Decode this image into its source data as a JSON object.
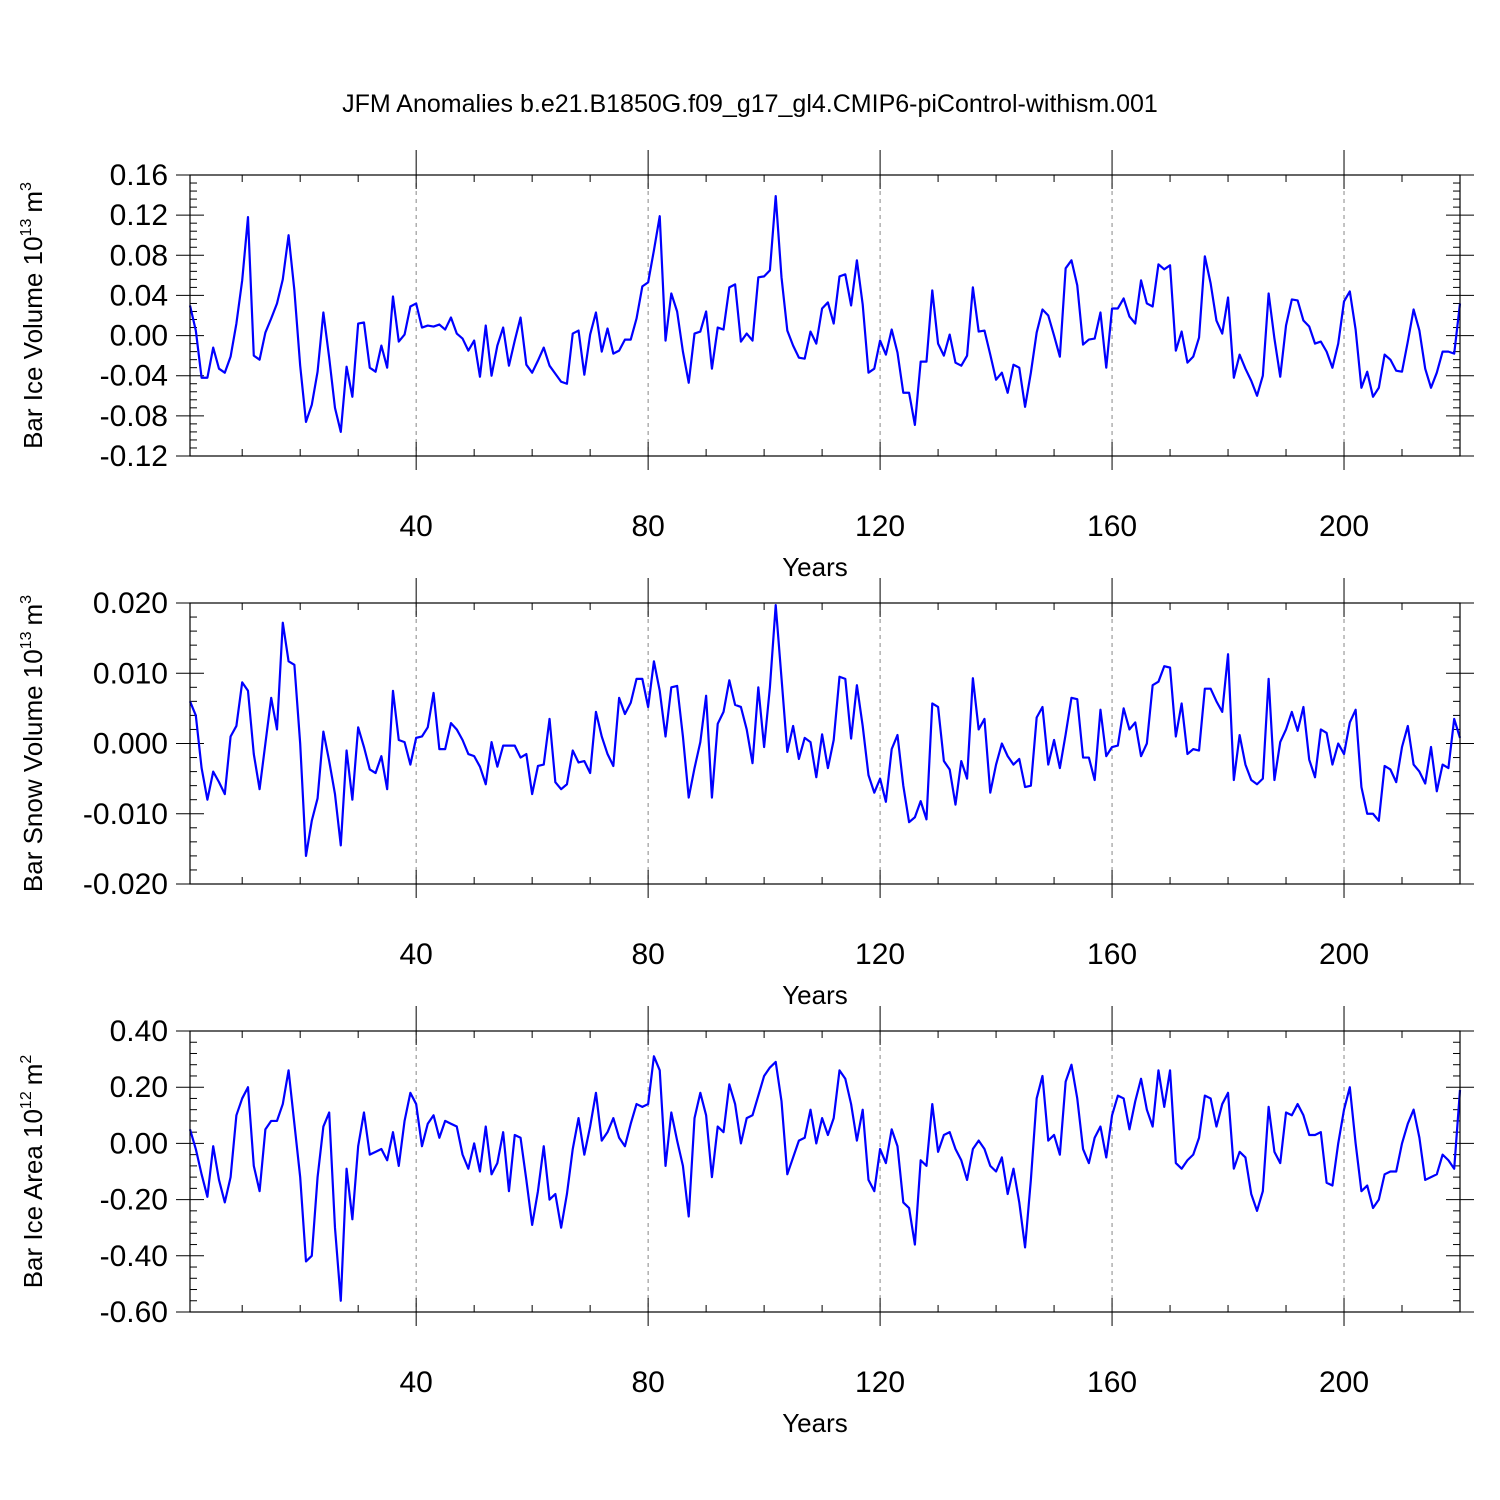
{
  "title": "JFM Anomalies b.e21.B1850G.f09_g17_gl4.CMIP6-piControl-withism.001",
  "line_color": "#0000ff",
  "chart_data": [
    {
      "type": "line",
      "name": "Bar Ice Volume",
      "ylabel_main": "Bar Ice Volume 10",
      "ylabel_exp": "13",
      "ylabel_unit": "m",
      "ylabel_unit_exp": "3",
      "xlabel": "Years",
      "xlim": [
        1,
        220
      ],
      "xticks": [
        40,
        80,
        120,
        160,
        200
      ],
      "xtick_labels": [
        "40",
        "80",
        "120",
        "160",
        "200"
      ],
      "ylim": [
        -0.12,
        0.16
      ],
      "yticks": [
        -0.12,
        -0.08,
        -0.04,
        0.0,
        0.04,
        0.08,
        0.12,
        0.16
      ],
      "ytick_labels": [
        "-0.12",
        "-0.08",
        "-0.04",
        "0.00",
        "0.04",
        "0.08",
        "0.12",
        "0.16"
      ],
      "grid": "dashed vertical at x ticks",
      "values": [
        0.03,
        0.005,
        -0.042,
        -0.042,
        -0.012,
        -0.033,
        -0.037,
        -0.021,
        0.012,
        0.055,
        0.118,
        -0.02,
        -0.024,
        0.003,
        0.017,
        0.032,
        0.056,
        0.1,
        0.045,
        -0.03,
        -0.086,
        -0.069,
        -0.036,
        0.023,
        -0.022,
        -0.072,
        -0.096,
        -0.031,
        -0.061,
        0.012,
        0.013,
        -0.032,
        -0.036,
        -0.01,
        -0.032,
        0.039,
        -0.006,
        0.001,
        0.029,
        0.032,
        0.008,
        0.01,
        0.009,
        0.011,
        0.006,
        0.018,
        0.002,
        -0.003,
        -0.015,
        -0.005,
        -0.041,
        0.01,
        -0.04,
        -0.01,
        0.008,
        -0.03,
        -0.005,
        0.018,
        -0.029,
        -0.037,
        -0.025,
        -0.012,
        -0.03,
        -0.038,
        -0.046,
        -0.048,
        0.002,
        0.005,
        -0.039,
        0.001,
        0.023,
        -0.016,
        0.007,
        -0.018,
        -0.015,
        -0.004,
        -0.004,
        0.017,
        0.049,
        0.053,
        0.085,
        0.119,
        -0.005,
        0.042,
        0.024,
        -0.016,
        -0.047,
        0.002,
        0.004,
        0.024,
        -0.033,
        0.008,
        0.006,
        0.048,
        0.051,
        -0.006,
        0.002,
        -0.005,
        0.058,
        0.059,
        0.065,
        0.139,
        0.058,
        0.005,
        -0.01,
        -0.022,
        -0.023,
        0.004,
        -0.008,
        0.027,
        0.033,
        0.012,
        0.059,
        0.061,
        0.03,
        0.075,
        0.031,
        -0.037,
        -0.033,
        -0.005,
        -0.019,
        0.006,
        -0.017,
        -0.057,
        -0.057,
        -0.089,
        -0.026,
        -0.026,
        0.045,
        -0.008,
        -0.02,
        0.001,
        -0.027,
        -0.03,
        -0.02,
        0.048,
        0.004,
        0.005,
        -0.019,
        -0.044,
        -0.037,
        -0.057,
        -0.029,
        -0.032,
        -0.071,
        -0.037,
        0.003,
        0.026,
        0.02,
        0.0,
        -0.021,
        0.067,
        0.075,
        0.05,
        -0.009,
        -0.004,
        -0.003,
        0.023,
        -0.032,
        0.027,
        0.027,
        0.037,
        0.019,
        0.012,
        0.055,
        0.032,
        0.029,
        0.071,
        0.066,
        0.07,
        -0.015,
        0.004,
        -0.027,
        -0.021,
        -0.002,
        0.079,
        0.052,
        0.015,
        0.002,
        0.038,
        -0.042,
        -0.019,
        -0.033,
        -0.045,
        -0.06,
        -0.04,
        0.042,
        -0.003,
        -0.041,
        0.01,
        0.036,
        0.035,
        0.015,
        0.009,
        -0.008,
        -0.006,
        -0.016,
        -0.032,
        -0.008,
        0.034,
        0.044,
        0.006,
        -0.052,
        -0.036,
        -0.061,
        -0.052,
        -0.019,
        -0.024,
        -0.035,
        -0.036,
        -0.006,
        0.026,
        0.005,
        -0.033,
        -0.052,
        -0.037,
        -0.016,
        -0.016,
        -0.018,
        0.032
      ]
    },
    {
      "type": "line",
      "name": "Bar Snow Volume",
      "ylabel_main": "Bar Snow Volume 10",
      "ylabel_exp": "13",
      "ylabel_unit": "m",
      "ylabel_unit_exp": "3",
      "xlabel": "Years",
      "xlim": [
        1,
        220
      ],
      "xticks": [
        40,
        80,
        120,
        160,
        200
      ],
      "xtick_labels": [
        "40",
        "80",
        "120",
        "160",
        "200"
      ],
      "ylim": [
        -0.02,
        0.02
      ],
      "yticks": [
        -0.02,
        -0.01,
        0.0,
        0.01,
        0.02
      ],
      "ytick_labels": [
        "-0.020",
        "-0.010",
        "0.000",
        "0.010",
        "0.020"
      ],
      "grid": "dashed vertical at x ticks",
      "values": [
        0.006,
        0.004,
        -0.0035,
        -0.008,
        -0.004,
        -0.0055,
        -0.0072,
        0.001,
        0.0025,
        0.0087,
        0.0075,
        -0.0015,
        -0.0065,
        0.0,
        0.0065,
        0.002,
        0.0172,
        0.0117,
        0.0112,
        0.0,
        -0.016,
        -0.011,
        -0.0078,
        0.0017,
        -0.0025,
        -0.0072,
        -0.0145,
        -0.001,
        -0.008,
        0.0023,
        -0.0005,
        -0.0037,
        -0.0042,
        -0.0018,
        -0.0065,
        0.0075,
        0.0005,
        0.0002,
        -0.003,
        0.0008,
        0.001,
        0.0023,
        0.0072,
        -0.0008,
        -0.0008,
        0.0029,
        0.002,
        0.0005,
        -0.0015,
        -0.0018,
        -0.0033,
        -0.0058,
        0.0002,
        -0.0033,
        -0.0003,
        -0.0003,
        -0.0003,
        -0.002,
        -0.0015,
        -0.0072,
        -0.0032,
        -0.003,
        0.0035,
        -0.0055,
        -0.0065,
        -0.0058,
        -0.001,
        -0.0027,
        -0.0025,
        -0.0042,
        0.0045,
        0.001,
        -0.0015,
        -0.0032,
        0.0065,
        0.0042,
        0.0058,
        0.0092,
        0.0092,
        0.0052,
        0.0117,
        0.0075,
        0.001,
        0.008,
        0.0082,
        0.001,
        -0.0077,
        -0.0035,
        0.0002,
        0.0068,
        -0.0077,
        0.0028,
        0.0045,
        0.009,
        0.0055,
        0.0052,
        0.002,
        -0.0028,
        0.008,
        -0.0005,
        0.008,
        0.0197,
        0.0093,
        -0.0012,
        0.0025,
        -0.0022,
        0.0008,
        0.0002,
        -0.0048,
        0.0013,
        -0.0035,
        0.0005,
        0.0095,
        0.0092,
        0.0007,
        0.0083,
        0.0025,
        -0.0045,
        -0.007,
        -0.005,
        -0.0083,
        -0.0008,
        0.0012,
        -0.006,
        -0.0112,
        -0.0105,
        -0.0082,
        -0.0108,
        0.0057,
        0.0052,
        -0.0025,
        -0.0037,
        -0.0087,
        -0.0025,
        -0.005,
        0.0093,
        0.002,
        0.0035,
        -0.007,
        -0.003,
        0.0,
        -0.0018,
        -0.003,
        -0.0022,
        -0.0062,
        -0.006,
        0.0037,
        0.0052,
        -0.003,
        0.0005,
        -0.0035,
        0.0013,
        0.0065,
        0.0063,
        -0.002,
        -0.002,
        -0.0052,
        0.0048,
        -0.0018,
        -0.0005,
        -0.0003,
        0.005,
        0.002,
        0.003,
        -0.0018,
        0.0,
        0.0083,
        0.0088,
        0.011,
        0.0108,
        0.001,
        0.0057,
        -0.0015,
        -0.0008,
        -0.001,
        0.0078,
        0.0078,
        0.006,
        0.0045,
        0.0127,
        -0.0052,
        0.0012,
        -0.003,
        -0.0052,
        -0.0058,
        -0.005,
        0.0092,
        -0.0052,
        0.0002,
        0.002,
        0.0045,
        0.0018,
        0.0052,
        -0.0023,
        -0.0048,
        0.002,
        0.0015,
        -0.003,
        0.0,
        -0.0015,
        0.003,
        0.0048,
        -0.0062,
        -0.01,
        -0.01,
        -0.011,
        -0.0032,
        -0.0037,
        -0.0055,
        -0.0005,
        0.0025,
        -0.003,
        -0.004,
        -0.0057,
        -0.0005,
        -0.0068,
        -0.003,
        -0.0035,
        0.0035,
        0.0008
      ]
    },
    {
      "type": "line",
      "name": "Bar Ice Area",
      "ylabel_main": "Bar Ice Area 10",
      "ylabel_exp": "12",
      "ylabel_unit": "m",
      "ylabel_unit_exp": "2",
      "xlabel": "Years",
      "xlim": [
        1,
        220
      ],
      "xticks": [
        40,
        80,
        120,
        160,
        200
      ],
      "xtick_labels": [
        "40",
        "80",
        "120",
        "160",
        "200"
      ],
      "ylim": [
        -0.6,
        0.4
      ],
      "yticks": [
        -0.6,
        -0.4,
        -0.2,
        0.0,
        0.2,
        0.4
      ],
      "ytick_labels": [
        "-0.60",
        "-0.40",
        "-0.20",
        "0.00",
        "0.20",
        "0.40"
      ],
      "grid": "dashed vertical at x ticks",
      "values": [
        0.05,
        -0.02,
        -0.11,
        -0.19,
        -0.01,
        -0.13,
        -0.21,
        -0.12,
        0.1,
        0.16,
        0.2,
        -0.08,
        -0.17,
        0.05,
        0.08,
        0.08,
        0.14,
        0.26,
        0.07,
        -0.12,
        -0.42,
        -0.4,
        -0.12,
        0.06,
        0.11,
        -0.3,
        -0.56,
        -0.09,
        -0.27,
        -0.01,
        0.11,
        -0.04,
        -0.03,
        -0.02,
        -0.06,
        0.04,
        -0.08,
        0.08,
        0.18,
        0.14,
        -0.01,
        0.07,
        0.1,
        0.02,
        0.08,
        0.07,
        0.06,
        -0.04,
        -0.09,
        0.0,
        -0.1,
        0.06,
        -0.11,
        -0.07,
        0.04,
        -0.17,
        0.03,
        0.02,
        -0.13,
        -0.29,
        -0.17,
        -0.01,
        -0.2,
        -0.18,
        -0.3,
        -0.18,
        -0.02,
        0.09,
        -0.04,
        0.06,
        0.18,
        0.01,
        0.04,
        0.09,
        0.02,
        -0.01,
        0.07,
        0.14,
        0.13,
        0.14,
        0.31,
        0.26,
        -0.08,
        0.11,
        0.01,
        -0.08,
        -0.26,
        0.09,
        0.18,
        0.1,
        -0.12,
        0.06,
        0.04,
        0.21,
        0.14,
        0.0,
        0.09,
        0.1,
        0.17,
        0.24,
        0.27,
        0.29,
        0.15,
        -0.11,
        -0.05,
        0.01,
        0.02,
        0.12,
        0.0,
        0.09,
        0.03,
        0.09,
        0.26,
        0.23,
        0.14,
        0.01,
        0.12,
        -0.13,
        -0.17,
        -0.02,
        -0.07,
        0.05,
        -0.01,
        -0.21,
        -0.23,
        -0.36,
        -0.06,
        -0.08,
        0.14,
        -0.03,
        0.03,
        0.04,
        -0.02,
        -0.06,
        -0.13,
        -0.02,
        0.01,
        -0.02,
        -0.08,
        -0.1,
        -0.05,
        -0.18,
        -0.09,
        -0.21,
        -0.37,
        -0.13,
        0.16,
        0.24,
        0.01,
        0.03,
        -0.04,
        0.22,
        0.28,
        0.16,
        -0.02,
        -0.07,
        0.02,
        0.06,
        -0.05,
        0.1,
        0.17,
        0.16,
        0.05,
        0.15,
        0.23,
        0.12,
        0.06,
        0.26,
        0.13,
        0.26,
        -0.07,
        -0.09,
        -0.06,
        -0.04,
        0.02,
        0.17,
        0.16,
        0.06,
        0.14,
        0.18,
        -0.09,
        -0.03,
        -0.05,
        -0.18,
        -0.24,
        -0.17,
        0.13,
        -0.03,
        -0.07,
        0.11,
        0.1,
        0.14,
        0.1,
        0.03,
        0.03,
        0.04,
        -0.14,
        -0.15,
        0.0,
        0.12,
        0.2,
        0.0,
        -0.17,
        -0.15,
        -0.23,
        -0.2,
        -0.11,
        -0.1,
        -0.1,
        0.0,
        0.07,
        0.12,
        0.02,
        -0.13,
        -0.12,
        -0.11,
        -0.04,
        -0.06,
        -0.09,
        0.19
      ]
    }
  ]
}
